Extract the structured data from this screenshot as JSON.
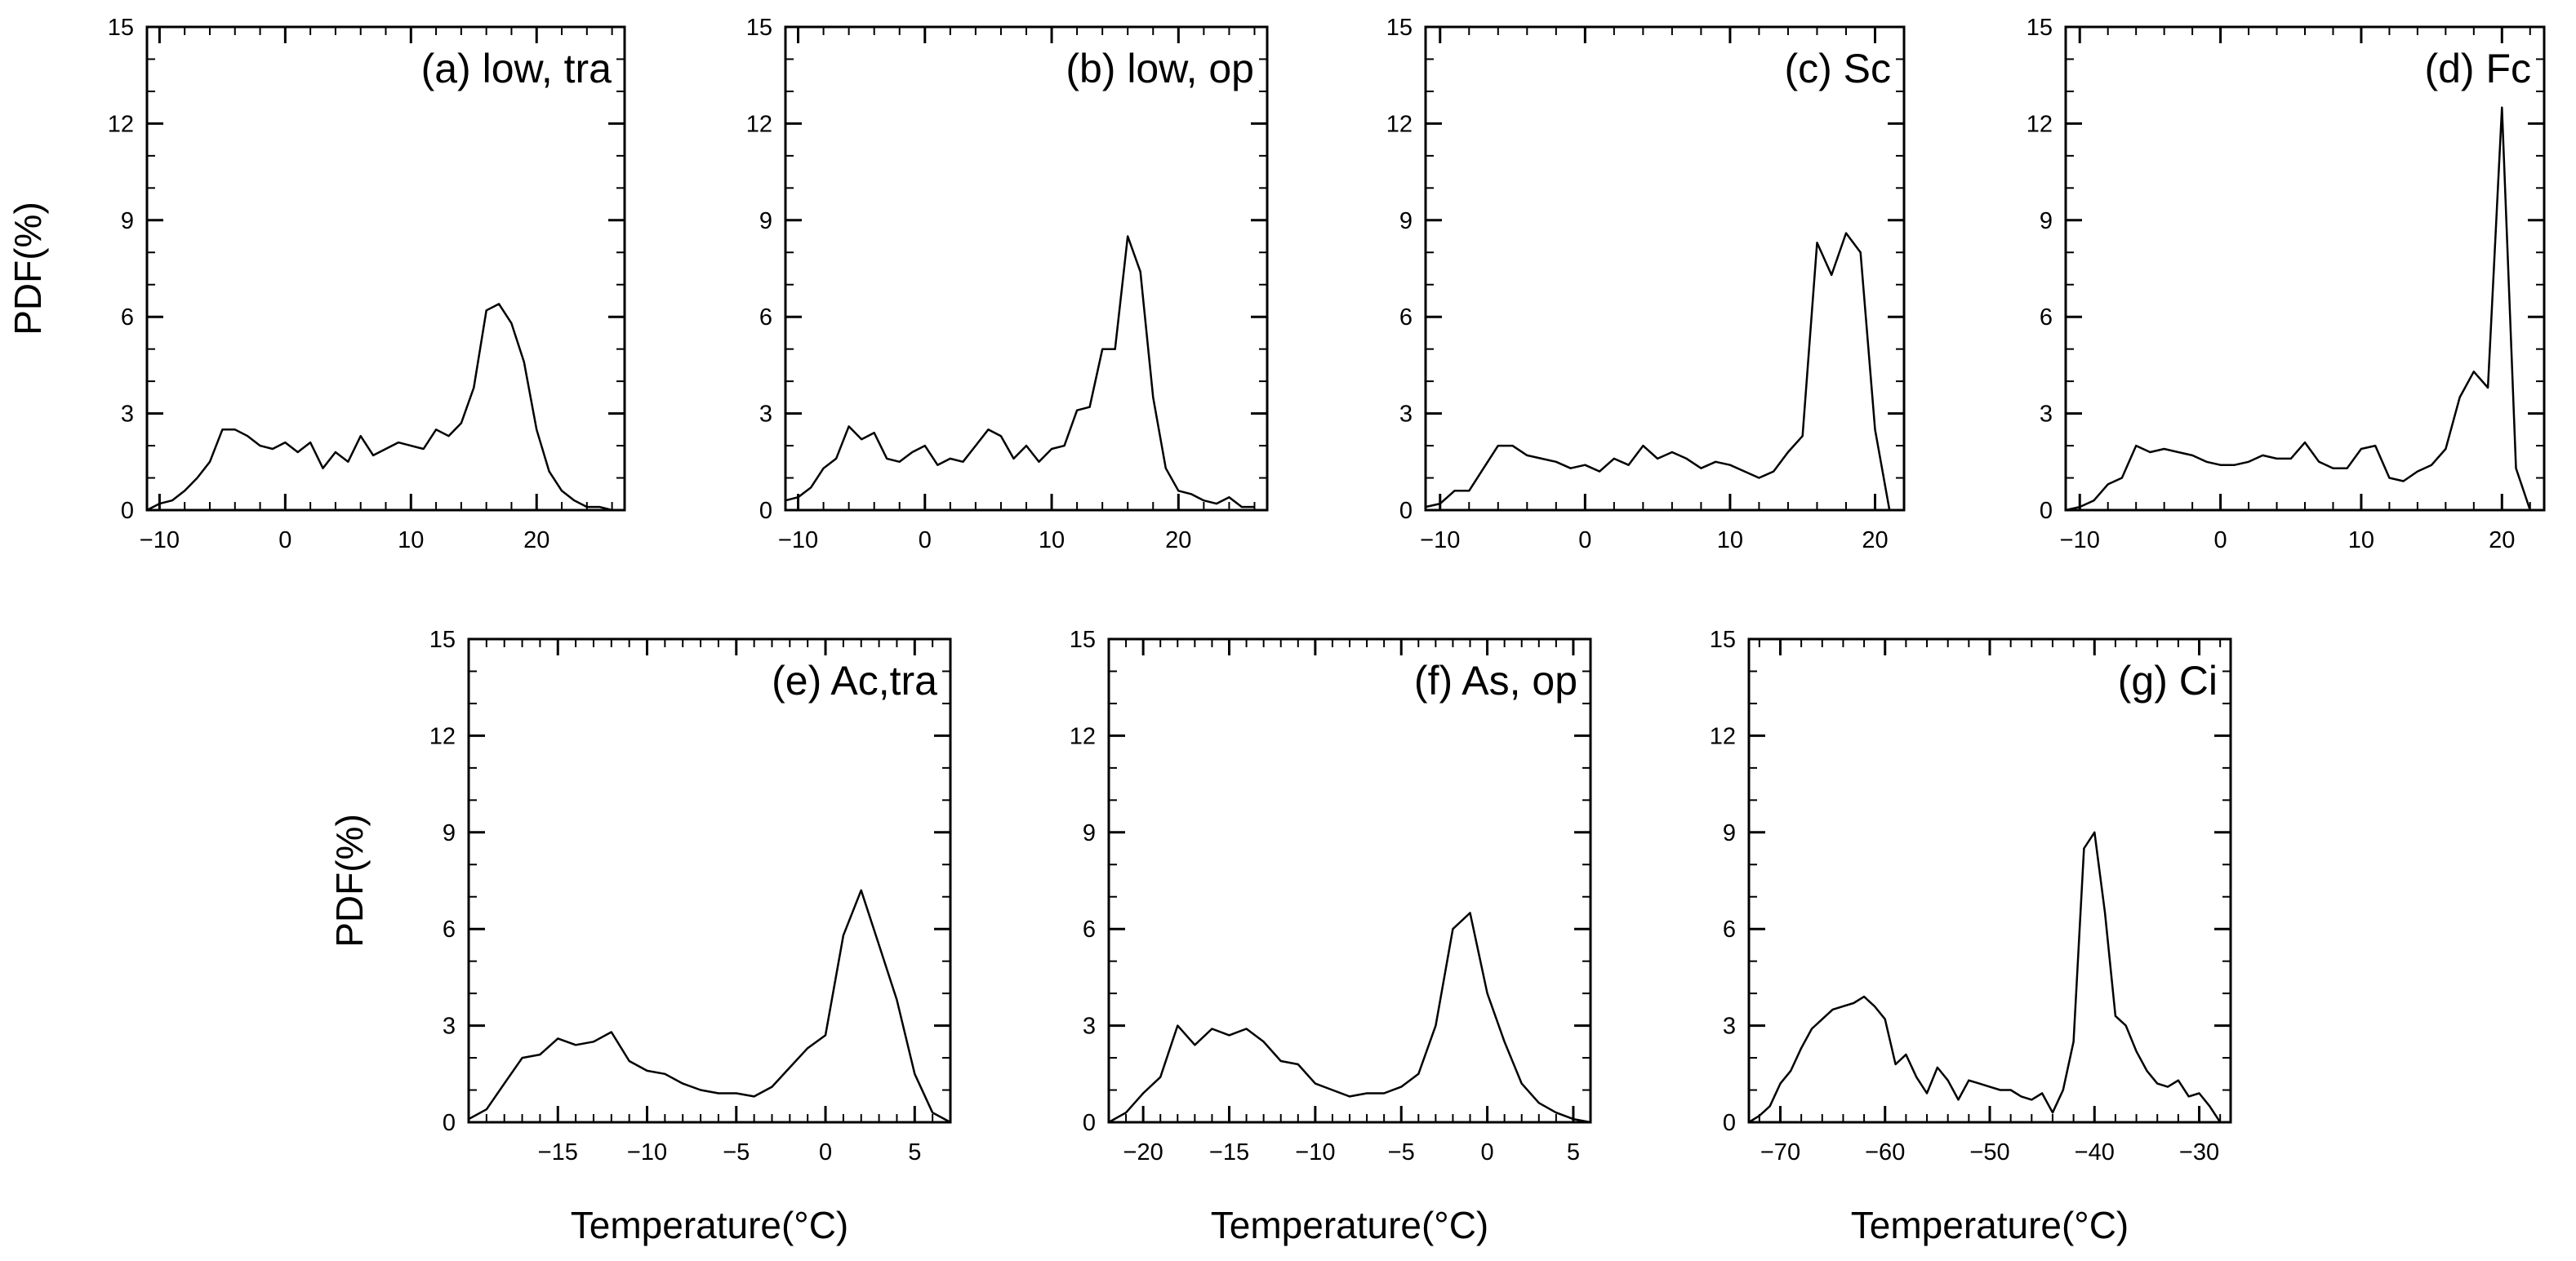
{
  "chart_data": [
    {
      "type": "line",
      "panel_label": "(a) low, tra",
      "ylabel": "PDF(%)",
      "xlabel": "",
      "xlim": [
        -11,
        27
      ],
      "ylim": [
        0,
        15
      ],
      "xticks": [
        -10,
        0,
        10,
        20
      ],
      "xtick_labels": [
        "−10",
        "0",
        "10",
        "20"
      ],
      "yticks": [
        0,
        3,
        6,
        9,
        12,
        15
      ],
      "ytick_labels": [
        "0",
        "3",
        "6",
        "9",
        "12",
        "15"
      ],
      "x": [
        -11,
        -10,
        -9,
        -8,
        -7,
        -6,
        -5,
        -4,
        -3,
        -2,
        -1,
        0,
        1,
        2,
        3,
        4,
        5,
        6,
        7,
        8,
        9,
        10,
        11,
        12,
        13,
        14,
        15,
        16,
        17,
        18,
        19,
        20,
        21,
        22,
        23,
        24,
        25,
        26
      ],
      "y": [
        0.0,
        0.2,
        0.3,
        0.6,
        1.0,
        1.5,
        2.5,
        2.5,
        2.3,
        2.0,
        1.9,
        2.1,
        1.8,
        2.1,
        1.3,
        1.8,
        1.5,
        2.3,
        1.7,
        1.9,
        2.1,
        2.0,
        1.9,
        2.5,
        2.3,
        2.7,
        3.8,
        6.2,
        6.4,
        5.8,
        4.6,
        2.5,
        1.2,
        0.6,
        0.3,
        0.1,
        0.1,
        0.0
      ]
    },
    {
      "type": "line",
      "panel_label": "(b) low, op",
      "xlim": [
        -11,
        27
      ],
      "ylim": [
        0,
        15
      ],
      "xticks": [
        -10,
        0,
        10,
        20
      ],
      "xtick_labels": [
        "−10",
        "0",
        "10",
        "20"
      ],
      "yticks": [
        0,
        3,
        6,
        9,
        12,
        15
      ],
      "ytick_labels": [
        "0",
        "3",
        "6",
        "9",
        "12",
        "15"
      ],
      "x": [
        -11,
        -10,
        -9,
        -8,
        -7,
        -6,
        -5,
        -4,
        -3,
        -2,
        -1,
        0,
        1,
        2,
        3,
        4,
        5,
        6,
        7,
        8,
        9,
        10,
        11,
        12,
        13,
        14,
        15,
        16,
        17,
        18,
        19,
        20,
        21,
        22,
        23,
        24,
        25,
        26
      ],
      "y": [
        0.3,
        0.4,
        0.7,
        1.3,
        1.6,
        2.6,
        2.2,
        2.4,
        1.6,
        1.5,
        1.8,
        2.0,
        1.4,
        1.6,
        1.5,
        2.0,
        2.5,
        2.3,
        1.6,
        2.0,
        1.5,
        1.9,
        2.0,
        3.1,
        3.2,
        5.0,
        5.0,
        8.5,
        7.4,
        3.5,
        1.3,
        0.6,
        0.5,
        0.3,
        0.2,
        0.4,
        0.1,
        0.1
      ]
    },
    {
      "type": "line",
      "panel_label": "(c) Sc",
      "xlim": [
        -11,
        22
      ],
      "ylim": [
        0,
        15
      ],
      "xticks": [
        -10,
        0,
        10,
        20
      ],
      "xtick_labels": [
        "−10",
        "0",
        "10",
        "20"
      ],
      "yticks": [
        0,
        3,
        6,
        9,
        12,
        15
      ],
      "ytick_labels": [
        "0",
        "3",
        "6",
        "9",
        "12",
        "15"
      ],
      "x": [
        -11,
        -10,
        -9,
        -8,
        -7,
        -6,
        -5,
        -4,
        -3,
        -2,
        -1,
        0,
        1,
        2,
        3,
        4,
        5,
        6,
        7,
        8,
        9,
        10,
        11,
        12,
        13,
        14,
        15,
        16,
        17,
        18,
        19,
        20,
        21
      ],
      "y": [
        0.1,
        0.2,
        0.6,
        0.6,
        1.3,
        2.0,
        2.0,
        1.7,
        1.6,
        1.5,
        1.3,
        1.4,
        1.2,
        1.6,
        1.4,
        2.0,
        1.6,
        1.8,
        1.6,
        1.3,
        1.5,
        1.4,
        1.2,
        1.0,
        1.2,
        1.8,
        2.3,
        8.3,
        7.3,
        8.6,
        8.0,
        2.5,
        0.0
      ]
    },
    {
      "type": "line",
      "panel_label": "(d) Fc",
      "xlim": [
        -11,
        23
      ],
      "ylim": [
        0,
        15
      ],
      "xticks": [
        -10,
        0,
        10,
        20
      ],
      "xtick_labels": [
        "−10",
        "0",
        "10",
        "20"
      ],
      "yticks": [
        0,
        3,
        6,
        9,
        12,
        15
      ],
      "ytick_labels": [
        "0",
        "3",
        "6",
        "9",
        "12",
        "15"
      ],
      "x": [
        -11,
        -10,
        -9,
        -8,
        -7,
        -6,
        -5,
        -4,
        -3,
        -2,
        -1,
        0,
        1,
        2,
        3,
        4,
        5,
        6,
        7,
        8,
        9,
        10,
        11,
        12,
        13,
        14,
        15,
        16,
        17,
        18,
        19,
        20,
        21,
        22
      ],
      "y": [
        0.0,
        0.1,
        0.3,
        0.8,
        1.0,
        2.0,
        1.8,
        1.9,
        1.8,
        1.7,
        1.5,
        1.4,
        1.4,
        1.5,
        1.7,
        1.6,
        1.6,
        2.1,
        1.5,
        1.3,
        1.3,
        1.9,
        2.0,
        1.0,
        0.9,
        1.2,
        1.4,
        1.9,
        3.5,
        4.3,
        3.8,
        12.5,
        1.3,
        0.0
      ]
    },
    {
      "type": "line",
      "panel_label": "(e) Ac,tra",
      "ylabel": "PDF(%)",
      "xlabel": "Temperature(°C)",
      "xlim": [
        -20,
        7
      ],
      "ylim": [
        0,
        15
      ],
      "xticks": [
        -15,
        -10,
        -5,
        0,
        5
      ],
      "xtick_labels": [
        "−15",
        "−10",
        "−5",
        "0",
        "5"
      ],
      "yticks": [
        0,
        3,
        6,
        9,
        12,
        15
      ],
      "ytick_labels": [
        "0",
        "3",
        "6",
        "9",
        "12",
        "15"
      ],
      "x": [
        -20,
        -19,
        -18,
        -17,
        -16,
        -15,
        -14,
        -13,
        -12,
        -11,
        -10,
        -9,
        -8,
        -7,
        -6,
        -5,
        -4,
        -3,
        -2,
        -1,
        0,
        1,
        2,
        3,
        4,
        5,
        6,
        7
      ],
      "y": [
        0.1,
        0.4,
        1.2,
        2.0,
        2.1,
        2.6,
        2.4,
        2.5,
        2.8,
        1.9,
        1.6,
        1.5,
        1.2,
        1.0,
        0.9,
        0.9,
        0.8,
        1.1,
        1.7,
        2.3,
        2.7,
        5.8,
        7.2,
        5.5,
        3.8,
        1.5,
        0.3,
        0.0
      ]
    },
    {
      "type": "line",
      "panel_label": "(f) As, op",
      "xlabel": "Temperature(°C)",
      "xlim": [
        -22,
        6
      ],
      "ylim": [
        0,
        15
      ],
      "xticks": [
        -20,
        -15,
        -10,
        -5,
        0,
        5
      ],
      "xtick_labels": [
        "−20",
        "−15",
        "−10",
        "−5",
        "0",
        "5"
      ],
      "yticks": [
        0,
        3,
        6,
        9,
        12,
        15
      ],
      "ytick_labels": [
        "0",
        "3",
        "6",
        "9",
        "12",
        "15"
      ],
      "x": [
        -22,
        -21,
        -20,
        -19,
        -18,
        -17,
        -16,
        -15,
        -14,
        -13,
        -12,
        -11,
        -10,
        -9,
        -8,
        -7,
        -6,
        -5,
        -4,
        -3,
        -2,
        -1,
        0,
        1,
        2,
        3,
        4,
        5,
        6
      ],
      "y": [
        0.0,
        0.3,
        0.9,
        1.4,
        3.0,
        2.4,
        2.9,
        2.7,
        2.9,
        2.5,
        1.9,
        1.8,
        1.2,
        1.0,
        0.8,
        0.9,
        0.9,
        1.1,
        1.5,
        3.0,
        6.0,
        6.5,
        4.0,
        2.5,
        1.2,
        0.6,
        0.3,
        0.1,
        0.0
      ]
    },
    {
      "type": "line",
      "panel_label": "(g) Ci",
      "xlabel": "Temperature(°C)",
      "xlim": [
        -73,
        -27
      ],
      "ylim": [
        0,
        15
      ],
      "xticks": [
        -70,
        -60,
        -50,
        -40,
        -30
      ],
      "xtick_labels": [
        "−70",
        "−60",
        "−50",
        "−40",
        "−30"
      ],
      "yticks": [
        0,
        3,
        6,
        9,
        12,
        15
      ],
      "ytick_labels": [
        "0",
        "3",
        "6",
        "9",
        "12",
        "15"
      ],
      "x": [
        -73,
        -72,
        -71,
        -70,
        -69,
        -68,
        -67,
        -66,
        -65,
        -64,
        -63,
        -62,
        -61,
        -60,
        -59,
        -58,
        -57,
        -56,
        -55,
        -54,
        -53,
        -52,
        -51,
        -50,
        -49,
        -48,
        -47,
        -46,
        -45,
        -44,
        -43,
        -42,
        -41,
        -40,
        -39,
        -38,
        -37,
        -36,
        -35,
        -34,
        -33,
        -32,
        -31,
        -30,
        -29,
        -28
      ],
      "y": [
        0.0,
        0.2,
        0.5,
        1.2,
        1.6,
        2.3,
        2.9,
        3.2,
        3.5,
        3.6,
        3.7,
        3.9,
        3.6,
        3.2,
        1.8,
        2.1,
        1.4,
        0.9,
        1.7,
        1.3,
        0.7,
        1.3,
        1.2,
        1.1,
        1.0,
        1.0,
        0.8,
        0.7,
        0.9,
        0.3,
        1.0,
        2.5,
        8.5,
        9.0,
        6.5,
        3.3,
        3.0,
        2.2,
        1.6,
        1.2,
        1.1,
        1.3,
        0.8,
        0.9,
        0.5,
        0.0
      ]
    }
  ]
}
